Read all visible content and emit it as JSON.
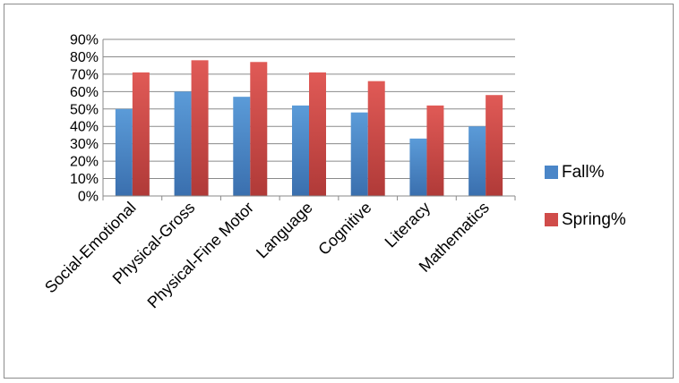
{
  "chart_data": {
    "type": "bar",
    "categories": [
      "Social-Emotional",
      "Physical-Gross",
      "Physical-Fine Motor",
      "Language",
      "Cognitive",
      "Literacy",
      "Mathematics"
    ],
    "series": [
      {
        "name": "Fall%",
        "values": [
          50,
          60,
          57,
          52,
          48,
          33,
          40
        ]
      },
      {
        "name": "Spring%",
        "values": [
          71,
          78,
          77,
          71,
          66,
          52,
          58
        ]
      }
    ],
    "ylim": [
      0,
      90
    ],
    "yticks": [
      "0%",
      "10%",
      "20%",
      "30%",
      "40%",
      "50%",
      "60%",
      "70%",
      "80%",
      "90%"
    ],
    "grid": true,
    "legend_position": "right",
    "colors": {
      "Fall%": "#4a86c8",
      "Spring%": "#d04c4a"
    }
  }
}
